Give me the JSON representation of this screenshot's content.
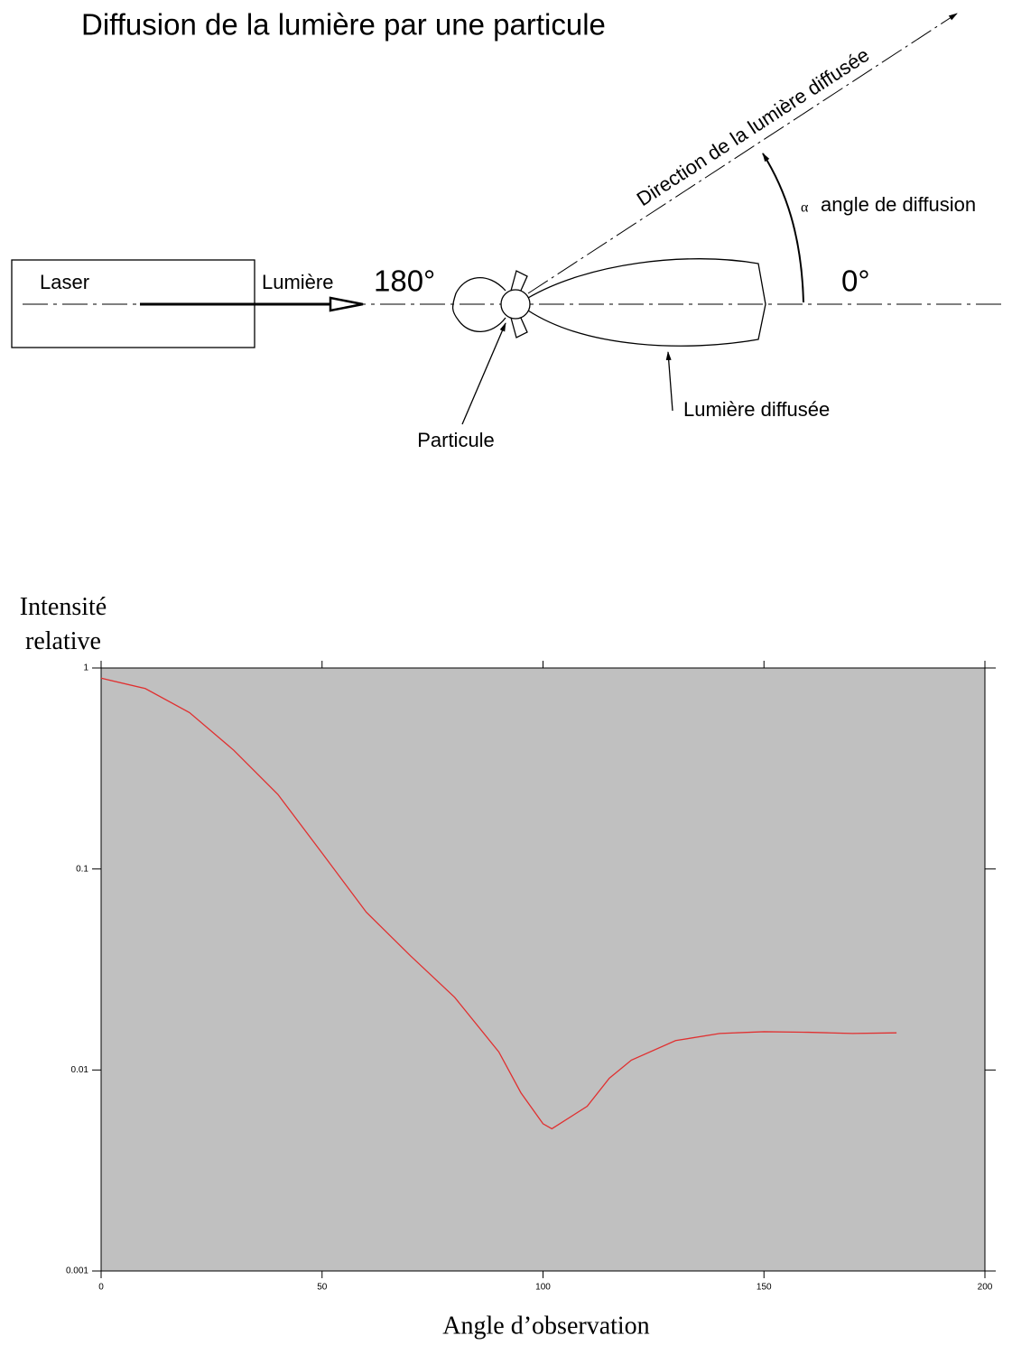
{
  "diagram": {
    "title": "Diffusion de la lumière par une particule",
    "laser": "Laser",
    "light": "Lumière",
    "angle_180": "180°",
    "angle_0": "0°",
    "direction": "Direction de la lumière diffusée",
    "alpha": "α",
    "angle_label": "angle de diffusion",
    "particle": "Particule",
    "scattered": "Lumière diffusée"
  },
  "chart_data": {
    "type": "line",
    "ylabel": "Intensité relative",
    "xlabel": "Angle d’observation",
    "x": [
      0,
      10,
      20,
      30,
      40,
      50,
      60,
      70,
      80,
      90,
      95,
      100,
      102,
      110,
      115,
      120,
      130,
      140,
      150,
      160,
      170,
      180
    ],
    "series": [
      {
        "color": "#e03030",
        "values": [
          0.89,
          0.79,
          0.6,
          0.39,
          0.235,
          0.12,
          0.061,
          0.037,
          0.023,
          0.0123,
          0.0077,
          0.0054,
          0.0051,
          0.0066,
          0.0091,
          0.0112,
          0.014,
          0.0152,
          0.0155,
          0.0154,
          0.0152,
          0.0153
        ]
      }
    ],
    "xlim": [
      0,
      200
    ],
    "xticks": [
      0,
      50,
      100,
      150,
      200
    ],
    "ylim": [
      0.001,
      1
    ],
    "yticks": [
      0.001,
      0.01,
      0.1,
      1
    ],
    "log_y": true,
    "grid": false,
    "background": "#c0c0c0"
  }
}
